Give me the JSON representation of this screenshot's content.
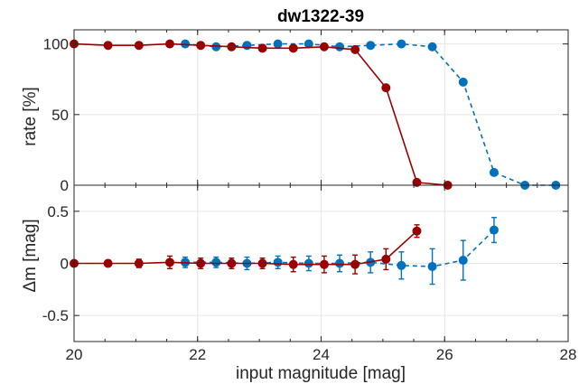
{
  "chart_data": {
    "title": "dw1322-39",
    "xlabel": "input magnitude [mag]",
    "xlim": [
      20,
      28
    ],
    "xticks": [
      "20",
      "22",
      "24",
      "26",
      "28"
    ],
    "colors": {
      "red": "#990000",
      "blue": "#0072BD"
    },
    "grid": true,
    "panels": [
      {
        "type": "line",
        "ylabel": "rate [%]",
        "ylim": [
          0,
          110
        ],
        "yticks": [
          "0",
          "50",
          "100"
        ],
        "series": [
          {
            "color": "#0072BD",
            "style": "dashed",
            "x": [
              21.8,
              22.3,
              22.8,
              23.3,
              23.8,
              24.3,
              24.8,
              25.3,
              25.8,
              26.3,
              26.8,
              27.3,
              27.8
            ],
            "y": [
              100,
              98,
              99,
              100,
              100,
              98,
              99,
              100,
              98,
              73,
              9,
              0,
              0
            ]
          },
          {
            "color": "#990000",
            "style": "solid",
            "x": [
              20.0,
              20.55,
              21.05,
              21.55,
              22.05,
              22.55,
              23.05,
              23.55,
              24.05,
              24.55,
              25.05,
              25.55,
              26.05
            ],
            "y": [
              100,
              99,
              99,
              100,
              99,
              98,
              97,
              97,
              98,
              96,
              69,
              2,
              0
            ]
          }
        ]
      },
      {
        "type": "errorbar",
        "ylabel": "Δm [mag]",
        "ylim": [
          -0.75,
          0.75
        ],
        "yticks": [
          "0.5",
          "0",
          "-0.5"
        ],
        "series": [
          {
            "color": "#0072BD",
            "style": "dashed",
            "x": [
              21.8,
              22.3,
              22.8,
              23.3,
              23.8,
              24.3,
              24.8,
              25.3,
              25.8,
              26.3,
              26.8
            ],
            "y": [
              0.01,
              0.01,
              0.0,
              0.01,
              0.0,
              0.0,
              0.01,
              -0.02,
              -0.03,
              0.03,
              0.32
            ],
            "err": [
              0.05,
              0.05,
              0.06,
              0.06,
              0.07,
              0.08,
              0.1,
              0.13,
              0.17,
              0.19,
              0.12
            ]
          },
          {
            "color": "#990000",
            "style": "solid",
            "x": [
              20.0,
              20.55,
              21.05,
              21.55,
              22.05,
              22.55,
              23.05,
              23.55,
              24.05,
              24.55,
              25.05,
              25.55
            ],
            "y": [
              0.0,
              0.0,
              0.0,
              0.01,
              0.0,
              0.0,
              0.0,
              -0.01,
              -0.01,
              -0.01,
              0.04,
              0.31
            ],
            "err": [
              0.02,
              0.03,
              0.04,
              0.06,
              0.05,
              0.05,
              0.05,
              0.07,
              0.08,
              0.09,
              0.1,
              0.06
            ]
          }
        ]
      }
    ]
  }
}
